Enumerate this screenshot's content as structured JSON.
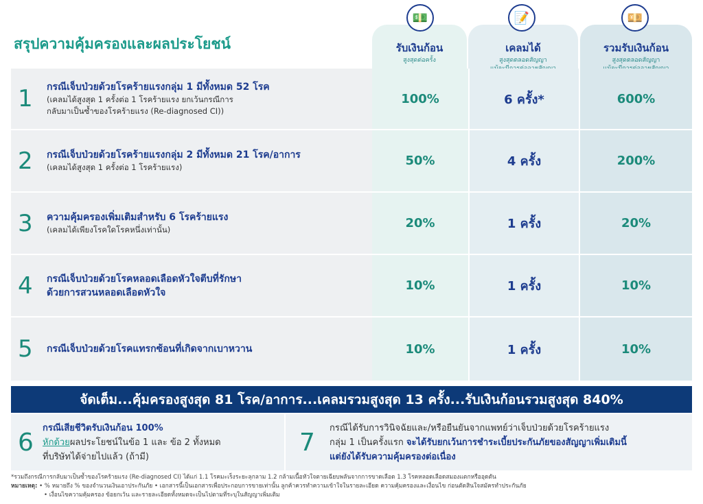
{
  "title": "สรุปความคุ้มครองและผลประโยชน์",
  "columns": [
    {
      "icon": "money-hand-icon",
      "heading": "รับเงินก้อน",
      "sub1": "สูงสุดต่อครั้ง",
      "sub2": ""
    },
    {
      "icon": "document-pen-icon",
      "heading": "เคลมได้",
      "sub1": "สูงสุดตลอดสัญญา",
      "sub2": "แม้จะมีการต่ออายุสัญญา"
    },
    {
      "icon": "money-stack-icon",
      "heading": "รวมรับเงินก้อน",
      "sub1": "สูงสุดตลอดสัญญา",
      "sub2": "แม้จะมีการต่ออายุสัญญา"
    }
  ],
  "rows": [
    {
      "num": "1",
      "title": "กรณีเจ็บป่วยด้วยโรคร้ายแรงกลุ่ม 1 มีทั้งหมด 52 โรค",
      "sub1": "(เคลมได้สูงสุด 1 ครั้งต่อ 1 โรคร้ายแรง ยกเว้นกรณีการ",
      "sub2": "กลับมาเป็นซ้ำของโรคร้ายแรง (Re-diagnosed CI))",
      "pay": "100%",
      "claims": "6 ครั้ง*",
      "total": "600%"
    },
    {
      "num": "2",
      "title": "กรณีเจ็บป่วยด้วยโรคร้ายแรงกลุ่ม 2 มีทั้งหมด 21 โรค/อาการ",
      "sub1": "(เคลมได้สูงสุด 1 ครั้งต่อ 1 โรคร้ายแรง)",
      "sub2": "",
      "pay": "50%",
      "claims": "4 ครั้ง",
      "total": "200%"
    },
    {
      "num": "3",
      "title": "ความคุ้มครองเพิ่มเติมสำหรับ 6 โรคร้ายแรง",
      "sub1": "(เคลมได้เพียงโรคใดโรคหนึ่งเท่านั้น)",
      "sub2": "",
      "pay": "20%",
      "claims": "1 ครั้ง",
      "total": "20%"
    },
    {
      "num": "4",
      "title": "กรณีเจ็บป่วยด้วยโรคหลอดเลือดหัวใจตีบที่รักษา",
      "title2": "ด้วยการสวนหลอดเลือดหัวใจ",
      "sub1": "",
      "sub2": "",
      "pay": "10%",
      "claims": "1 ครั้ง",
      "total": "10%"
    },
    {
      "num": "5",
      "title": "กรณีเจ็บป่วยด้วยโรคแทรกซ้อนที่เกิดจากเบาหวาน",
      "sub1": "",
      "sub2": "",
      "pay": "10%",
      "claims": "1 ครั้ง",
      "total": "10%"
    }
  ],
  "banner": "จัดเต็ม...คุ้มครองสูงสุด 81 โรค/อาการ...เคลมรวมสูงสุด 13 ครั้ง...รับเงินก้อนรวมสูงสุด 840%",
  "item6": {
    "num": "6",
    "line1": "กรณีเสียชีวิตรับเงินก้อน 100%",
    "link": "หักด้วย",
    "line2": "ผลประโยชน์ในข้อ 1 และ ข้อ 2 ทั้งหมด",
    "line3": "ที่บริษัทได้จ่ายไปแล้ว (ถ้ามี)"
  },
  "item7": {
    "num": "7",
    "line1": "กรณีได้รับการวินิจฉัยและ/หรือยืนยันจากแพทย์ว่าเจ็บป่วยด้วยโรคร้ายแรง",
    "line2a": "กลุ่ม 1 เป็นครั้งแรก ",
    "line2b": "จะได้รับยกเว้นการชำระเบี้ยประกันภัยของสัญญาเพิ่มเติมนี้",
    "line3": "แต่ยังได้รับความคุ้มครองต่อเนื่อง"
  },
  "notes": {
    "footnote": "*รวมถึงกรณีการกลับมาเป็นซ้ำของโรคร้ายแรง (Re-diagnosed CI) ได้แก่ 1.1 โรคมะเร็งระยะลุกลาม 1.2 กล้ามเนื้อหัวใจตายเฉียบพลันจากการขาดเลือด 1.3 โรคหลอดเลือดสมองแตกหรืออุดตัน",
    "label": "หมายเหตุ:",
    "note1": "• % หมายถึง % ของจำนวนเงินเอาประกันภัย  • เอกสารนี้เป็นเอกสารเพื่อประกอบการขายเท่านั้น ลูกค้าควรทำความเข้าใจในรายละเอียด ความคุ้มครองและเงื่อนไข ก่อนตัดสินใจสมัครทำประกันภัย",
    "note2": "• เงื่อนไขความคุ้มครอง ข้อยกเว้น และรายละเอียดทั้งหมดจะเป็นไปตามที่ระบุในสัญญาเพิ่มเติม"
  }
}
